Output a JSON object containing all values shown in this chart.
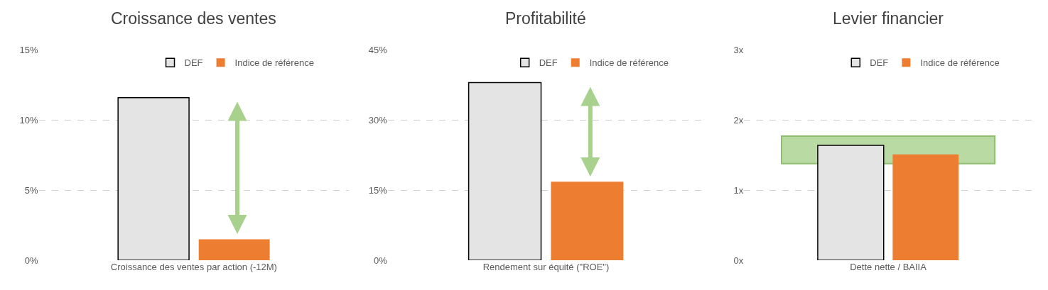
{
  "chart_data": [
    {
      "type": "bar",
      "title": "Croissance des ventes",
      "categories": [
        "Croissance des ventes par action (-12M)"
      ],
      "series": [
        {
          "name": "DEF",
          "color": "#e4e4e4",
          "values": [
            11.6
          ]
        },
        {
          "name": "Indice de référence",
          "color": "#ed7d31",
          "values": [
            1.5
          ]
        }
      ],
      "ylim": [
        0,
        15
      ],
      "yticks": [
        {
          "value": 0,
          "label": "0%"
        },
        {
          "value": 5,
          "label": "5%"
        },
        {
          "value": 10,
          "label": "10%"
        },
        {
          "value": 15,
          "label": "15%"
        }
      ],
      "grid": "y",
      "legend": "top right"
    },
    {
      "type": "bar",
      "title": "Profitabilité",
      "categories": [
        "Rendement sur équité (\"ROE\")"
      ],
      "series": [
        {
          "name": "DEF",
          "color": "#e4e4e4",
          "values": [
            38.0
          ]
        },
        {
          "name": "Indice de référence",
          "color": "#ed7d31",
          "values": [
            16.8
          ]
        }
      ],
      "ylim": [
        0,
        45
      ],
      "yticks": [
        {
          "value": 0,
          "label": "0%"
        },
        {
          "value": 15,
          "label": "15%"
        },
        {
          "value": 30,
          "label": "30%"
        },
        {
          "value": 45,
          "label": "45%"
        }
      ],
      "grid": "y",
      "legend": "top right"
    },
    {
      "type": "bar",
      "title": "Levier financier",
      "categories": [
        "Dette nette / BAIIA"
      ],
      "series": [
        {
          "name": "DEF",
          "color": "#e4e4e4",
          "values": [
            1.64
          ]
        },
        {
          "name": "Indice de référence",
          "color": "#ed7d31",
          "values": [
            1.51
          ]
        }
      ],
      "ylim": [
        0,
        3
      ],
      "yticks": [
        {
          "value": 0,
          "label": "0x"
        },
        {
          "value": 1,
          "label": "1x"
        },
        {
          "value": 2,
          "label": "2x"
        },
        {
          "value": 3,
          "label": "3x"
        }
      ],
      "grid": "y",
      "legend": "top right",
      "bands": [
        {
          "axis": "y",
          "from": 1.38,
          "to": 1.77,
          "color": "#a9d18e"
        }
      ]
    }
  ]
}
